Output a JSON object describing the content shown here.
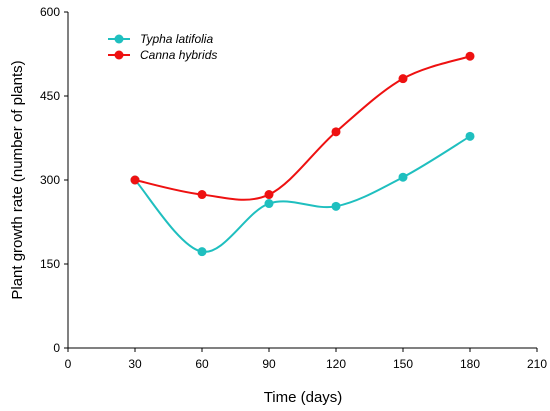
{
  "chart_data": {
    "type": "line",
    "title": "",
    "xlabel": "Time (days)",
    "ylabel": "Plant growth rate (number of plants)",
    "xlim": [
      0,
      210
    ],
    "ylim": [
      0,
      600
    ],
    "xticks": [
      0,
      30,
      60,
      90,
      120,
      150,
      180,
      210
    ],
    "yticks": [
      0,
      150,
      300,
      450,
      600
    ],
    "grid": false,
    "legend_position": "top-left",
    "x": [
      30,
      60,
      90,
      120,
      150,
      180
    ],
    "series": [
      {
        "name": "Typha latifolia",
        "color": "#1fbfbf",
        "values": [
          300,
          172,
          258,
          253,
          305,
          378
        ]
      },
      {
        "name": "Canna hybrids",
        "color": "#ee1111",
        "values": [
          300,
          274,
          274,
          386,
          481,
          521
        ]
      }
    ]
  }
}
